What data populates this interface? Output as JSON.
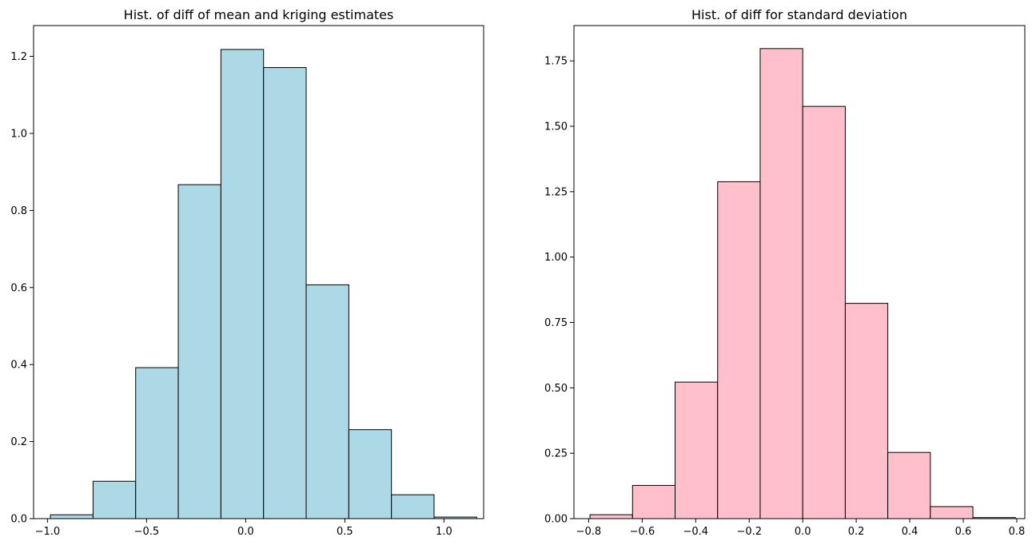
{
  "chart_data": [
    {
      "type": "bar",
      "title": "Hist. of diff of mean and kriging estimates",
      "xlabel": "",
      "ylabel": "",
      "bar_color": "#add8e6",
      "edge_color": "#000000",
      "xlim": [
        -1.07,
        1.2
      ],
      "ylim": [
        0,
        1.28
      ],
      "xticks": [
        -1.0,
        -0.5,
        0.0,
        0.5,
        1.0
      ],
      "xtick_labels": [
        "−1.0",
        "−0.5",
        "0.0",
        "0.5",
        "1.0"
      ],
      "yticks": [
        0.0,
        0.2,
        0.4,
        0.6,
        0.8,
        1.0,
        1.2
      ],
      "ytick_labels": [
        "0.0",
        "0.2",
        "0.4",
        "0.6",
        "0.8",
        "1.0",
        "1.2"
      ],
      "bin_edges": [
        -0.985,
        -0.77,
        -0.555,
        -0.34,
        -0.125,
        0.09,
        0.305,
        0.52,
        0.735,
        0.95,
        1.165
      ],
      "values": [
        0.01,
        0.097,
        0.392,
        0.867,
        1.218,
        1.171,
        0.607,
        0.231,
        0.062,
        0.004
      ]
    },
    {
      "type": "bar",
      "title": "Hist. of diff for standard deviation",
      "xlabel": "",
      "ylabel": "",
      "bar_color": "#ffc0cb",
      "edge_color": "#000000",
      "xlim": [
        -0.855,
        0.83
      ],
      "ylim": [
        0,
        1.885
      ],
      "xticks": [
        -0.8,
        -0.6,
        -0.4,
        -0.2,
        0.0,
        0.2,
        0.4,
        0.6,
        0.8
      ],
      "xtick_labels": [
        "−0.8",
        "−0.6",
        "−0.4",
        "−0.2",
        "0.0",
        "0.2",
        "0.4",
        "0.6",
        "0.8"
      ],
      "yticks": [
        0.0,
        0.25,
        0.5,
        0.75,
        1.0,
        1.25,
        1.5,
        1.75
      ],
      "ytick_labels": [
        "0.00",
        "0.25",
        "0.50",
        "0.75",
        "1.00",
        "1.25",
        "1.50",
        "1.75"
      ],
      "bin_edges": [
        -0.795,
        -0.636,
        -0.477,
        -0.318,
        -0.159,
        0.0,
        0.159,
        0.318,
        0.477,
        0.636,
        0.795
      ],
      "values": [
        0.015,
        0.127,
        0.522,
        1.288,
        1.797,
        1.576,
        0.823,
        0.253,
        0.046,
        0.004
      ]
    }
  ]
}
